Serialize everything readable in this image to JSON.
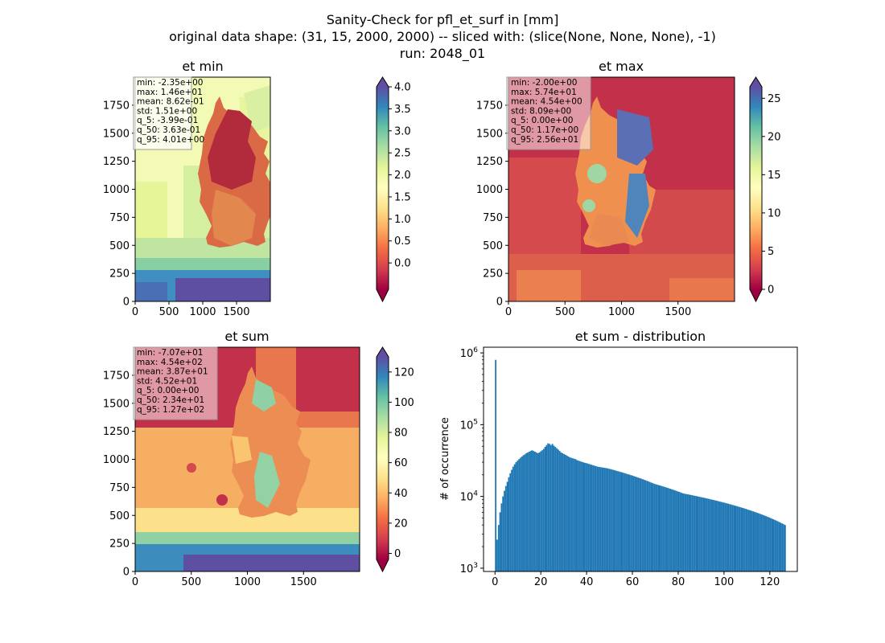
{
  "suptitle": {
    "line1": "Sanity-Check for pfl_et_surf in [mm]",
    "line2": "original data shape: (31, 15, 2000, 2000) -- sliced with: (slice(None, None, None), -1)",
    "line3": "run: 2048_01"
  },
  "chart_data": [
    {
      "type": "heatmap",
      "title": "et min",
      "colormap": "Spectral",
      "x_ticks": [
        "0",
        "500",
        "1000",
        "1500"
      ],
      "y_ticks": [
        "0",
        "250",
        "500",
        "750",
        "1000",
        "1250",
        "1500",
        "1750"
      ],
      "xlim": [
        0,
        2000
      ],
      "ylim": [
        0,
        2000
      ],
      "colorbar": {
        "vmin": -0.6,
        "vmax": 4.0,
        "ticks": [
          "0.0",
          "0.5",
          "1.0",
          "1.5",
          "2.0",
          "2.5",
          "3.0",
          "3.5",
          "4.0"
        ],
        "tick_values": [
          0,
          0.5,
          1,
          1.5,
          2,
          2.5,
          3,
          3.5,
          4
        ],
        "extend": "both"
      },
      "stats": [
        "min: -2.35e+00",
        "max: 1.46e+01",
        "mean: 8.62e-01",
        "std: 1.51e+00",
        "q_5: -3.99e-01",
        "q_50: 3.63e-01",
        "q_95: 4.01e+00"
      ]
    },
    {
      "type": "heatmap",
      "title": "et max",
      "colormap": "Spectral",
      "x_ticks": [
        "0",
        "500",
        "1000",
        "1500"
      ],
      "y_ticks": [
        "0",
        "250",
        "500",
        "750",
        "1000",
        "1250",
        "1500",
        "1750"
      ],
      "xlim": [
        0,
        2000
      ],
      "ylim": [
        0,
        2000
      ],
      "colorbar": {
        "vmin": 0,
        "vmax": 26.5,
        "ticks": [
          "0",
          "5",
          "10",
          "15",
          "20",
          "25"
        ],
        "tick_values": [
          0,
          5,
          10,
          15,
          20,
          25
        ],
        "extend": "both"
      },
      "stats": [
        "min: -2.00e+00",
        "max: 5.74e+01",
        "mean: 4.54e+00",
        "std: 8.09e+00",
        "q_5: 0.00e+00",
        "q_50: 1.17e+00",
        "q_95: 2.56e+01"
      ]
    },
    {
      "type": "heatmap",
      "title": "et sum",
      "colormap": "Spectral",
      "x_ticks": [
        "0",
        "500",
        "1000",
        "1500"
      ],
      "y_ticks": [
        "0",
        "250",
        "500",
        "750",
        "1000",
        "1250",
        "1500",
        "1750"
      ],
      "xlim": [
        0,
        2000
      ],
      "ylim": [
        0,
        2000
      ],
      "colorbar": {
        "vmin": -4,
        "vmax": 130,
        "ticks": [
          "0",
          "20",
          "40",
          "60",
          "80",
          "100",
          "120"
        ],
        "tick_values": [
          0,
          20,
          40,
          60,
          80,
          100,
          120
        ],
        "extend": "both"
      },
      "stats": [
        "min: -7.07e+01",
        "max: 4.54e+02",
        "mean: 3.87e+01",
        "std: 4.52e+01",
        "q_5: 0.00e+00",
        "q_50: 2.34e+01",
        "q_95: 1.27e+02"
      ]
    },
    {
      "type": "bar",
      "title": "et sum - distribution",
      "xlabel": "",
      "ylabel": "# of occurrence",
      "yscale": "log",
      "xlim": [
        -5,
        132
      ],
      "ylim": [
        900,
        1200000
      ],
      "x_ticks": [
        "0",
        "20",
        "40",
        "60",
        "80",
        "100",
        "120"
      ],
      "x_tick_values": [
        0,
        20,
        40,
        60,
        80,
        100,
        120
      ],
      "y_tick_values": [
        1000,
        10000,
        100000,
        1000000
      ],
      "y_ticks": [
        {
          "base": "10",
          "exp": "3"
        },
        {
          "base": "10",
          "exp": "4"
        },
        {
          "base": "10",
          "exp": "5"
        },
        {
          "base": "10",
          "exp": "6"
        }
      ],
      "color": "#1f77b4",
      "bin_width": 0.635,
      "bin_start": 0,
      "values": [
        800000,
        2500,
        4000,
        6000,
        8000,
        10000,
        12000,
        14000,
        16000,
        18500,
        21000,
        23500,
        26000,
        28000,
        30000,
        31500,
        33000,
        34500,
        36000,
        37500,
        38500,
        40000,
        41000,
        42000,
        43000,
        44000,
        43000,
        42000,
        41000,
        40000,
        41000,
        42500,
        44000,
        46000,
        49000,
        52000,
        55000,
        54000,
        52000,
        54000,
        51000,
        49000,
        47000,
        45000,
        43000,
        41000,
        40000,
        39000,
        38000,
        37000,
        36000,
        35000,
        34500,
        34000,
        33500,
        33000,
        32000,
        31500,
        31000,
        30500,
        30000,
        29500,
        29200,
        28800,
        28400,
        28000,
        27600,
        27200,
        26800,
        26400,
        26000,
        25800,
        25600,
        25400,
        25200,
        25000,
        24800,
        24600,
        24300,
        24000,
        23700,
        23400,
        23100,
        22800,
        22500,
        22200,
        21900,
        21600,
        21300,
        21000,
        20700,
        20400,
        20100,
        19800,
        19500,
        19200,
        18900,
        18600,
        18300,
        18000,
        17700,
        17400,
        17100,
        16800,
        16500,
        16200,
        15900,
        15600,
        15300,
        15000,
        14800,
        14600,
        14400,
        14200,
        14000,
        13800,
        13600,
        13400,
        13200,
        13000,
        12800,
        12600,
        12400,
        12200,
        12000,
        11800,
        11600,
        11400,
        11200,
        11000,
        10900,
        10800,
        10700,
        10600,
        10500,
        10400,
        10300,
        10200,
        10100,
        10000,
        9900,
        9800,
        9700,
        9600,
        9500,
        9400,
        9300,
        9200,
        9100,
        9000,
        8900,
        8800,
        8700,
        8600,
        8500,
        8400,
        8300,
        8200,
        8100,
        8000,
        7900,
        7800,
        7700,
        7600,
        7500,
        7400,
        7300,
        7200,
        7100,
        7000,
        6900,
        6800,
        6700,
        6600,
        6500,
        6400,
        6300,
        6200,
        6100,
        6000,
        5900,
        5800,
        5700,
        5600,
        5500,
        5400,
        5300,
        5200,
        5100,
        5000,
        4900,
        4800,
        4700,
        4600,
        4500,
        4400,
        4300,
        4200,
        4100,
        4000
      ]
    }
  ]
}
